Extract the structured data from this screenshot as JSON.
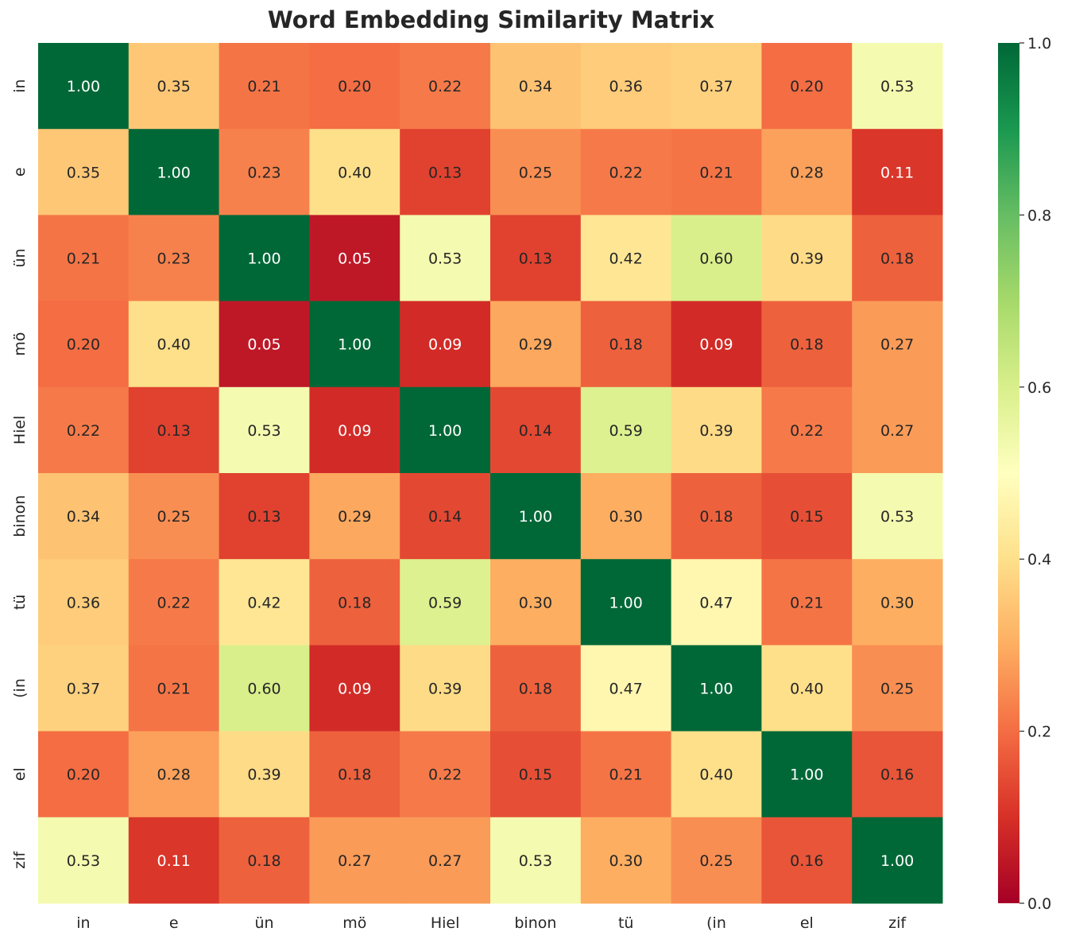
{
  "chart_data": {
    "type": "heatmap",
    "title": "Word Embedding Similarity Matrix",
    "x_labels": [
      "in",
      "e",
      "ün",
      "mö",
      "Hiel",
      "binon",
      "tü",
      "(in",
      "el",
      "zif"
    ],
    "y_labels": [
      "in",
      "e",
      "ün",
      "mö",
      "Hiel",
      "binon",
      "tü",
      "(in",
      "el",
      "zif"
    ],
    "values": [
      [
        1.0,
        0.35,
        0.21,
        0.2,
        0.22,
        0.34,
        0.36,
        0.37,
        0.2,
        0.53
      ],
      [
        0.35,
        1.0,
        0.23,
        0.4,
        0.13,
        0.25,
        0.22,
        0.21,
        0.28,
        0.11
      ],
      [
        0.21,
        0.23,
        1.0,
        0.05,
        0.53,
        0.13,
        0.42,
        0.6,
        0.39,
        0.18
      ],
      [
        0.2,
        0.4,
        0.05,
        1.0,
        0.09,
        0.29,
        0.18,
        0.09,
        0.18,
        0.27
      ],
      [
        0.22,
        0.13,
        0.53,
        0.09,
        1.0,
        0.14,
        0.59,
        0.39,
        0.22,
        0.27
      ],
      [
        0.34,
        0.25,
        0.13,
        0.29,
        0.14,
        1.0,
        0.3,
        0.18,
        0.15,
        0.53
      ],
      [
        0.36,
        0.22,
        0.42,
        0.18,
        0.59,
        0.3,
        1.0,
        0.47,
        0.21,
        0.3
      ],
      [
        0.37,
        0.21,
        0.6,
        0.09,
        0.39,
        0.18,
        0.47,
        1.0,
        0.4,
        0.25
      ],
      [
        0.2,
        0.28,
        0.39,
        0.18,
        0.22,
        0.15,
        0.21,
        0.4,
        1.0,
        0.16
      ],
      [
        0.53,
        0.11,
        0.18,
        0.27,
        0.27,
        0.53,
        0.3,
        0.25,
        0.16,
        1.0
      ]
    ],
    "colormap": "RdYlGn",
    "vmin": 0.0,
    "vmax": 1.0,
    "colorbar_ticks": [
      "0.0",
      "0.2",
      "0.4",
      "0.6",
      "0.8",
      "1.0"
    ],
    "annot_format": "0.00"
  }
}
